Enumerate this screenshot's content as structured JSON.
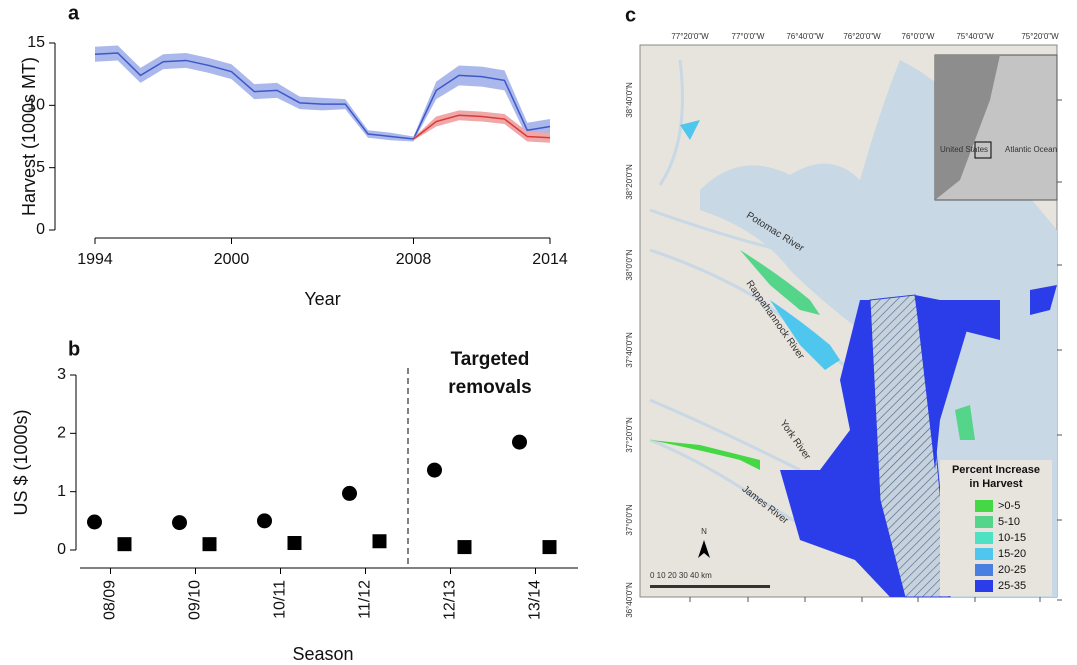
{
  "chart_data": [
    {
      "type": "line",
      "panel": "a",
      "ylabel": "Harvest (1000s MT)",
      "xlabel": "Year",
      "x": [
        1994,
        1995,
        1996,
        1997,
        1998,
        1999,
        2000,
        2001,
        2002,
        2003,
        2004,
        2005,
        2006,
        2007,
        2008,
        2009,
        2010,
        2011,
        2012,
        2013,
        2014
      ],
      "xlim": [
        1994,
        2014
      ],
      "xticks": [
        1994,
        2000,
        2008,
        2014
      ],
      "ylim": [
        0,
        15
      ],
      "yticks": [
        0,
        5,
        10,
        15
      ],
      "series": [
        {
          "color": "#3f57c9",
          "band_color": "#aab8ec",
          "values": [
            14.1,
            14.2,
            12.4,
            13.5,
            13.6,
            13.2,
            12.7,
            11.1,
            11.2,
            10.2,
            10.1,
            10.1,
            7.7,
            7.5,
            7.3,
            11.2,
            12.4,
            12.3,
            12.0,
            8.0,
            8.3
          ],
          "lower": [
            13.5,
            13.6,
            11.8,
            12.9,
            13.0,
            12.6,
            12.1,
            10.5,
            10.6,
            9.7,
            9.6,
            9.7,
            7.4,
            7.2,
            7.1,
            10.5,
            11.6,
            11.5,
            11.2,
            7.4,
            7.7
          ],
          "upper": [
            14.7,
            14.8,
            13.0,
            14.1,
            14.2,
            13.8,
            13.3,
            11.7,
            11.8,
            10.7,
            10.6,
            10.5,
            8.0,
            7.8,
            7.5,
            11.9,
            13.2,
            13.1,
            12.8,
            8.6,
            8.9
          ]
        },
        {
          "color": "#d93a3a",
          "band_color": "#f0a7a7",
          "values": [
            null,
            null,
            null,
            null,
            null,
            null,
            null,
            null,
            null,
            null,
            null,
            null,
            null,
            null,
            7.3,
            8.7,
            9.2,
            9.1,
            8.9,
            7.5,
            7.4
          ],
          "lower": [
            null,
            null,
            null,
            null,
            null,
            null,
            null,
            null,
            null,
            null,
            null,
            null,
            null,
            null,
            7.2,
            8.3,
            8.8,
            8.7,
            8.5,
            7.1,
            7.0
          ],
          "upper": [
            null,
            null,
            null,
            null,
            null,
            null,
            null,
            null,
            null,
            null,
            null,
            null,
            null,
            null,
            7.4,
            9.1,
            9.6,
            9.5,
            9.3,
            7.9,
            7.8
          ]
        }
      ]
    },
    {
      "type": "scatter",
      "panel": "b",
      "ylabel": "US $ (1000s)",
      "xlabel": "Season",
      "categories": [
        "08/09",
        "09/10",
        "10/11",
        "11/12",
        "12/13",
        "13/14"
      ],
      "ylim": [
        0,
        3
      ],
      "yticks": [
        0,
        1,
        2,
        3
      ],
      "annotation": "Targeted removals",
      "series": [
        {
          "marker": "circle",
          "color": "#000000",
          "values": [
            0.48,
            0.47,
            0.5,
            0.97,
            1.37,
            1.85
          ]
        },
        {
          "marker": "square",
          "color": "#000000",
          "values": [
            0.1,
            0.1,
            0.12,
            0.15,
            0.05,
            0.05
          ]
        }
      ]
    },
    {
      "type": "map",
      "panel": "c",
      "lon_labels": [
        "77°20'0\"W",
        "77°0'0\"W",
        "76°40'0\"W",
        "76°20'0\"W",
        "76°0'0\"W",
        "75°40'0\"W",
        "75°20'0\"W"
      ],
      "lat_labels": [
        "38°40'0\"N",
        "38°20'0\"N",
        "38°0'0\"N",
        "37°40'0\"N",
        "37°20'0\"N",
        "37°0'0\"N",
        "36°40'0\"N"
      ],
      "rivers": [
        "Potomac River",
        "Rappahannock River",
        "York River",
        "James River"
      ],
      "inset": [
        "United States",
        "Atlantic Ocean"
      ],
      "scale_label": "0   10  20  30  40 km",
      "north": "N",
      "legend": {
        "title": "Percent Increase in Harvest",
        "items": [
          {
            "label": ">0-5",
            "color": "#44d844"
          },
          {
            "label": "5-10",
            "color": "#55d58a"
          },
          {
            "label": "10-15",
            "color": "#4fe2c2"
          },
          {
            "label": "15-20",
            "color": "#4fc6ee"
          },
          {
            "label": "20-25",
            "color": "#4a7fe2"
          },
          {
            "label": "25-35",
            "color": "#2a3de8"
          }
        ]
      }
    }
  ]
}
